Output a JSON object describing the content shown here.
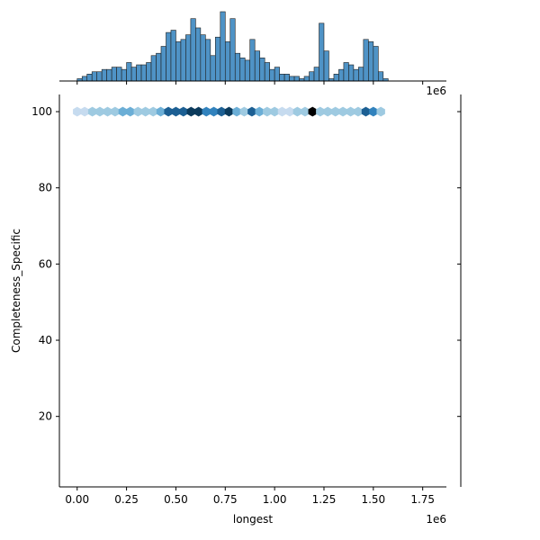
{
  "chart_data": {
    "type": "jointplot",
    "xlabel": "longest",
    "ylabel": "Completeness_Specific",
    "x_offset_label": "1e6",
    "xlim": [
      -0.09,
      1.87
    ],
    "ylim": [
      1.5,
      104.5
    ],
    "x_ticks": [
      0.0,
      0.25,
      0.5,
      0.75,
      1.0,
      1.25,
      1.5,
      1.75
    ],
    "x_tick_labels": [
      "0.00",
      "0.25",
      "0.50",
      "0.75",
      "1.00",
      "1.25",
      "1.50",
      "1.75"
    ],
    "y_ticks": [
      20,
      40,
      60,
      80,
      100
    ],
    "y_tick_labels": [
      "20",
      "40",
      "60",
      "80",
      "100"
    ],
    "colors": {
      "hist_fill": "#4f93c6",
      "hist_edge": "#1f1f1f",
      "hex_scale": [
        "#eaf2fa",
        "#c6dbef",
        "#9ecae1",
        "#6baed6",
        "#3182bd",
        "#1c5f93",
        "#0b3a5c",
        "#000000"
      ]
    },
    "marginal_x": {
      "type": "histogram",
      "bin_start": 0.0,
      "bin_width": 0.025,
      "counts": [
        1,
        2,
        3,
        4,
        4,
        5,
        5,
        6,
        6,
        5,
        8,
        6,
        7,
        7,
        8,
        11,
        12,
        15,
        21,
        22,
        17,
        18,
        20,
        27,
        23,
        20,
        18,
        11,
        19,
        30,
        17,
        27,
        12,
        10,
        9,
        18,
        13,
        10,
        8,
        5,
        6,
        3,
        3,
        2,
        2,
        1,
        2,
        4,
        6,
        25,
        13,
        1,
        3,
        5,
        8,
        7,
        5,
        6,
        18,
        17,
        15,
        4,
        1
      ]
    },
    "hexbin": {
      "y_value": 100,
      "x": [
        0.0,
        0.038,
        0.077,
        0.115,
        0.154,
        0.192,
        0.231,
        0.269,
        0.308,
        0.346,
        0.385,
        0.423,
        0.462,
        0.5,
        0.538,
        0.577,
        0.615,
        0.654,
        0.692,
        0.731,
        0.769,
        0.808,
        0.846,
        0.885,
        0.923,
        0.962,
        1.0,
        1.038,
        1.077,
        1.115,
        1.154,
        1.192,
        1.231,
        1.269,
        1.308,
        1.346,
        1.385,
        1.423,
        1.462,
        1.5,
        1.538
      ],
      "counts": [
        1,
        1,
        2,
        2,
        3,
        3,
        4,
        4,
        3,
        3,
        3,
        4,
        6,
        7,
        6,
        8,
        8,
        5,
        5,
        7,
        8,
        4,
        3,
        6,
        4,
        3,
        2,
        1,
        1,
        2,
        2,
        9,
        2,
        2,
        2,
        2,
        2,
        3,
        6,
        5,
        2
      ]
    }
  }
}
